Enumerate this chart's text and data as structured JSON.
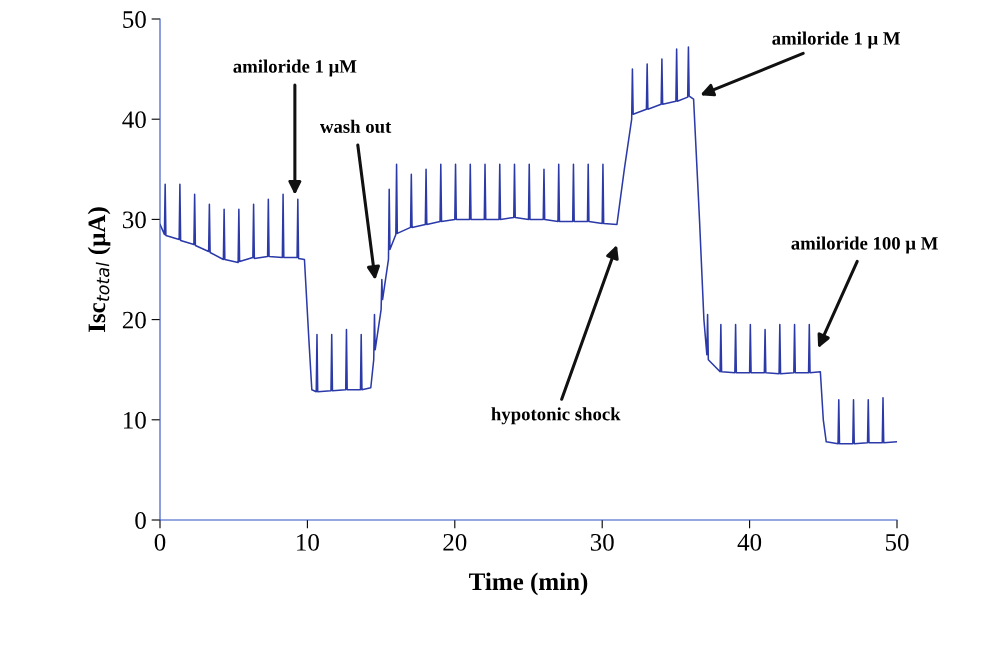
{
  "chart_data": {
    "type": "line",
    "xlabel": "Time (min)",
    "ylabel": "Isc$_{total}$ (μA)",
    "xlim": [
      0,
      50
    ],
    "xticks": [
      0,
      10,
      20,
      30,
      40,
      50
    ],
    "ylim": [
      0,
      50
    ],
    "yticks": [
      0,
      10,
      20,
      30,
      40,
      50
    ],
    "grid": false,
    "legend": false,
    "marker": "none",
    "line_style": "solid",
    "series": [
      {
        "color": "#2b3aa8",
        "x": [
          0,
          0.3,
          0.35,
          0.4,
          1.3,
          1.35,
          1.4,
          2.3,
          2.35,
          2.4,
          3.3,
          3.35,
          3.4,
          4.3,
          4.35,
          4.4,
          5.3,
          5.35,
          5.4,
          6.3,
          6.35,
          6.4,
          7.3,
          7.35,
          7.4,
          8.3,
          8.35,
          8.4,
          9.3,
          9.35,
          9.4,
          9.8,
          10.1,
          10.3,
          10.6,
          10.65,
          10.7,
          11.6,
          11.65,
          11.7,
          12.6,
          12.65,
          12.7,
          13.6,
          13.65,
          13.7,
          14.3,
          14.5,
          14.55,
          14.6,
          15,
          15.05,
          15.1,
          15.5,
          15.55,
          15.6,
          16,
          16.05,
          16.1,
          17,
          17.05,
          17.1,
          18,
          18.05,
          18.1,
          19,
          19.05,
          19.1,
          20,
          20.05,
          20.1,
          21,
          21.05,
          21.1,
          22,
          22.05,
          22.1,
          23,
          23.05,
          23.1,
          24,
          24.05,
          24.1,
          25,
          25.05,
          25.1,
          26,
          26.05,
          26.1,
          27,
          27.05,
          27.1,
          28,
          28.05,
          28.1,
          29,
          29.05,
          29.1,
          30,
          30.05,
          30.1,
          31,
          31.5,
          32,
          32.05,
          32.1,
          33,
          33.05,
          33.1,
          34,
          34.05,
          34.1,
          35,
          35.05,
          35.1,
          35.8,
          35.85,
          35.9,
          36.2,
          36.6,
          36.9,
          37.1,
          37.15,
          37.2,
          38,
          38.05,
          38.1,
          39,
          39.05,
          39.1,
          40,
          40.05,
          40.1,
          41,
          41.05,
          41.1,
          42,
          42.05,
          42.1,
          43,
          43.05,
          43.1,
          44,
          44.05,
          44.1,
          44.8,
          45,
          45.2,
          46,
          46.05,
          46.1,
          47,
          47.05,
          47.1,
          48,
          48.05,
          48.1,
          49,
          49.05,
          49.1,
          50
        ],
        "values": [
          29.5,
          28.5,
          33.5,
          28.4,
          28,
          33.5,
          27.9,
          27.5,
          32.5,
          27.4,
          26.8,
          31.5,
          26.7,
          26,
          31,
          26,
          25.7,
          31,
          25.8,
          26.2,
          31.5,
          26.1,
          26.3,
          32,
          26.3,
          26.2,
          32.5,
          26.2,
          26.2,
          32,
          26.1,
          26,
          18,
          13,
          12.8,
          18.5,
          12.8,
          12.9,
          18.5,
          12.9,
          13,
          19,
          13,
          13,
          18.5,
          13,
          13.2,
          16,
          20.5,
          17,
          21,
          24,
          22,
          26,
          33,
          27,
          28.5,
          35.5,
          28.6,
          29.2,
          34.5,
          29.2,
          29.5,
          35,
          29.5,
          29.8,
          35.5,
          29.8,
          30,
          35.5,
          30,
          30,
          35.5,
          30,
          30,
          35.5,
          30,
          30,
          35.5,
          30,
          30.2,
          35.5,
          30.2,
          30,
          35.5,
          30,
          30,
          35,
          30,
          29.8,
          35.5,
          29.8,
          29.8,
          35.5,
          29.8,
          29.8,
          35.5,
          29.8,
          29.6,
          35.5,
          29.6,
          29.5,
          35,
          40,
          45,
          40.5,
          41,
          45.5,
          41,
          41.5,
          46,
          41.5,
          41.8,
          47,
          41.8,
          42.2,
          47.2,
          42.3,
          42,
          30,
          20,
          16.5,
          20.5,
          16,
          14.8,
          19.5,
          14.8,
          14.7,
          19.5,
          14.7,
          14.7,
          19.5,
          14.7,
          14.7,
          19,
          14.7,
          14.6,
          19.5,
          14.6,
          14.7,
          19.5,
          14.7,
          14.7,
          19.5,
          14.7,
          14.8,
          10,
          7.8,
          7.6,
          12,
          7.6,
          7.6,
          12,
          7.6,
          7.7,
          12,
          7.7,
          7.7,
          12.2,
          7.7,
          7.8
        ]
      }
    ],
    "annotations": [
      "amiloride 1 μM",
      "wash out",
      "hypotonic shock",
      "amiloride 1 μ M",
      "amiloride 100 μ M"
    ]
  }
}
